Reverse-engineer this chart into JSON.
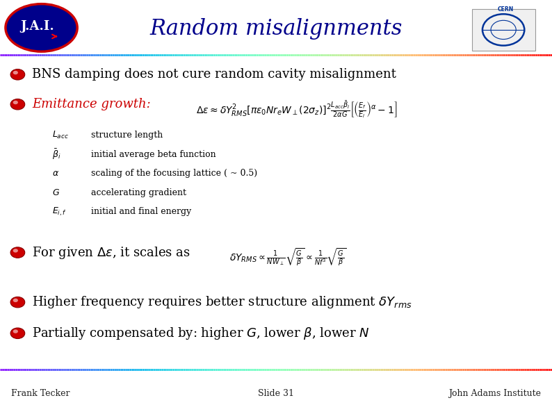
{
  "title": "Random misalignments",
  "title_color": "#00008B",
  "title_fontsize": 22,
  "bg_color": "#FFFFFF",
  "bullet_color": "#CC0000",
  "bullet1": "BNS damping does not cure random cavity misalignment",
  "bullet2_label": "Emittance growth:",
  "bullet2_label_color": "#CC0000",
  "bullet3": "For given $\\Delta\\varepsilon$, it scales as",
  "eq_emittance": "$\\Delta\\varepsilon \\approx \\delta Y_{RMS}^2 \\left[\\pi\\varepsilon_0 Nr_e W_{\\perp} (2\\sigma_z)\\right]^2 \\frac{L_{acc}\\bar{\\beta}_i}{2\\alpha G}\\left[\\left(\\frac{E_f}{E_i}\\right)^{\\alpha} - 1\\right]$",
  "eq_scaling": "$\\delta Y_{RMS} \\propto \\frac{1}{NW_{\\perp}}\\sqrt{\\frac{G}{\\beta}} \\propto \\frac{1}{Nf^3}\\sqrt{\\frac{G}{\\beta}}$",
  "params": [
    [
      "$L_{acc}$",
      "structure length"
    ],
    [
      "$\\bar{\\beta}_i$",
      "initial average beta function"
    ],
    [
      "$\\alpha$",
      "scaling of the focusing lattice ( ~ 0.5)"
    ],
    [
      "$G$",
      "accelerating gradient"
    ],
    [
      "$E_{i,f}$",
      "initial and final energy"
    ]
  ],
  "bullet4": "Higher frequency requires better structure alignment $\\delta Y_{rms}$",
  "bullet5": "Partially compensated by: higher $G$, lower $\\beta$, lower $N$",
  "footer_left": "Frank Tecker",
  "footer_center": "Slide 31",
  "footer_right": "John Adams Institute",
  "footer_color": "#222222",
  "footer_fontsize": 9,
  "text_fontsize": 13,
  "param_fontsize": 9,
  "eq_fontsize": 10
}
